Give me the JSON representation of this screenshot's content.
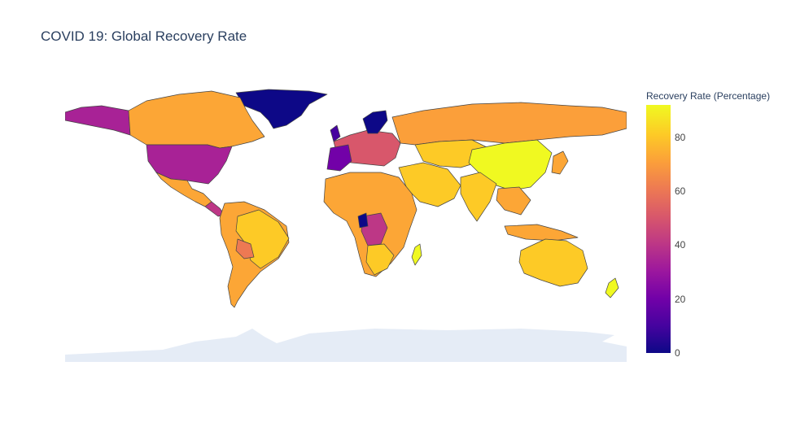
{
  "title": "COVID 19: Global Recovery Rate",
  "colorbar": {
    "title": "Recovery Rate (Percentage)",
    "ticks": [
      "0",
      "20",
      "40",
      "60",
      "80"
    ],
    "colorscale": [
      "#0d0887",
      "#46039f",
      "#7201a8",
      "#9c179e",
      "#bd3786",
      "#d8576b",
      "#ed7953",
      "#fb9f3a",
      "#fdca26",
      "#f0f921"
    ],
    "range": [
      0,
      92
    ]
  },
  "map": {
    "projection": "equirectangular",
    "ocean_color": "#ffffff",
    "antarctica_color": "#e5ecf6",
    "border_color": "#444444"
  }
}
